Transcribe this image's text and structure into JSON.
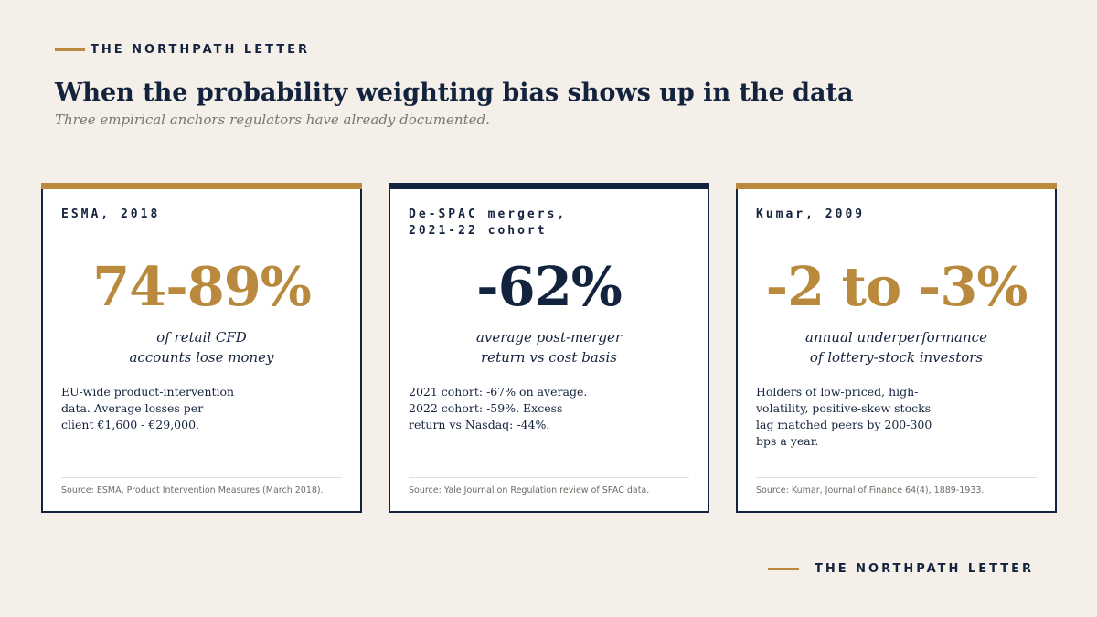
{
  "brand": {
    "name": "THE NORTHPATH LETTER"
  },
  "header": {
    "title": "When the probability weighting bias shows up in the data",
    "subtitle": "Three empirical anchors regulators have already documented."
  },
  "cards": [
    {
      "label": "ESMA, 2018",
      "stat": "74-89%",
      "caption_lines": [
        "of retail CFD",
        "accounts lose money"
      ],
      "body_lines": [
        "EU-wide product-intervention",
        "data. Average losses per",
        "client €1,600 - €29,000."
      ],
      "source": "Source: ESMA, Product Intervention Measures (March 2018)."
    },
    {
      "label": "De-SPAC mergers,\n2021-22 cohort",
      "stat": "-62%",
      "caption_lines": [
        "average post-merger",
        "return vs cost basis"
      ],
      "body_lines": [
        "2021 cohort: -67% on average.",
        "2022 cohort: -59%. Excess",
        "return vs Nasdaq: -44%."
      ],
      "source": "Source: Yale Journal on Regulation review of SPAC data."
    },
    {
      "label": "Kumar, 2009",
      "stat": "-2 to -3%",
      "caption_lines": [
        "annual underperformance",
        "of lottery-stock investors"
      ],
      "body_lines": [
        "Holders of low-priced, high-",
        "volatility, positive-skew stocks",
        "lag matched peers by 200-300",
        "bps a year."
      ],
      "source": "Source: Kumar, Journal of Finance 64(4), 1889-1933."
    }
  ],
  "colors": {
    "navy": "#14233d",
    "gold": "#b98a3e",
    "background": "#f4efe9"
  }
}
